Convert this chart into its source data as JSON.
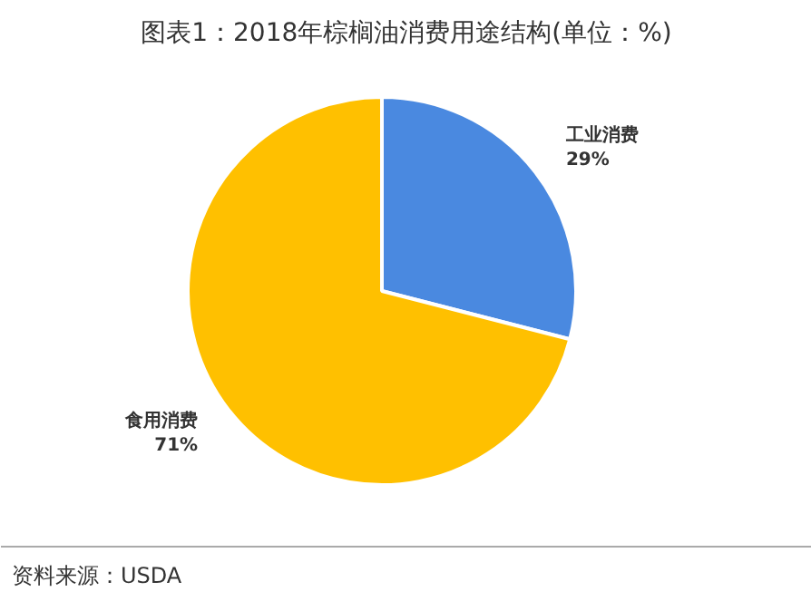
{
  "chart_data": {
    "type": "pie",
    "title": "图表1：2018年棕榈油消费用途结构(单位：%)",
    "categories": [
      "工业消费",
      "食用消费"
    ],
    "values": [
      29,
      71
    ],
    "value_labels": [
      "29%",
      "71%"
    ],
    "colors": [
      "#4a89e0",
      "#ffc000"
    ],
    "annotations": [
      "资料来源：USDA"
    ]
  }
}
